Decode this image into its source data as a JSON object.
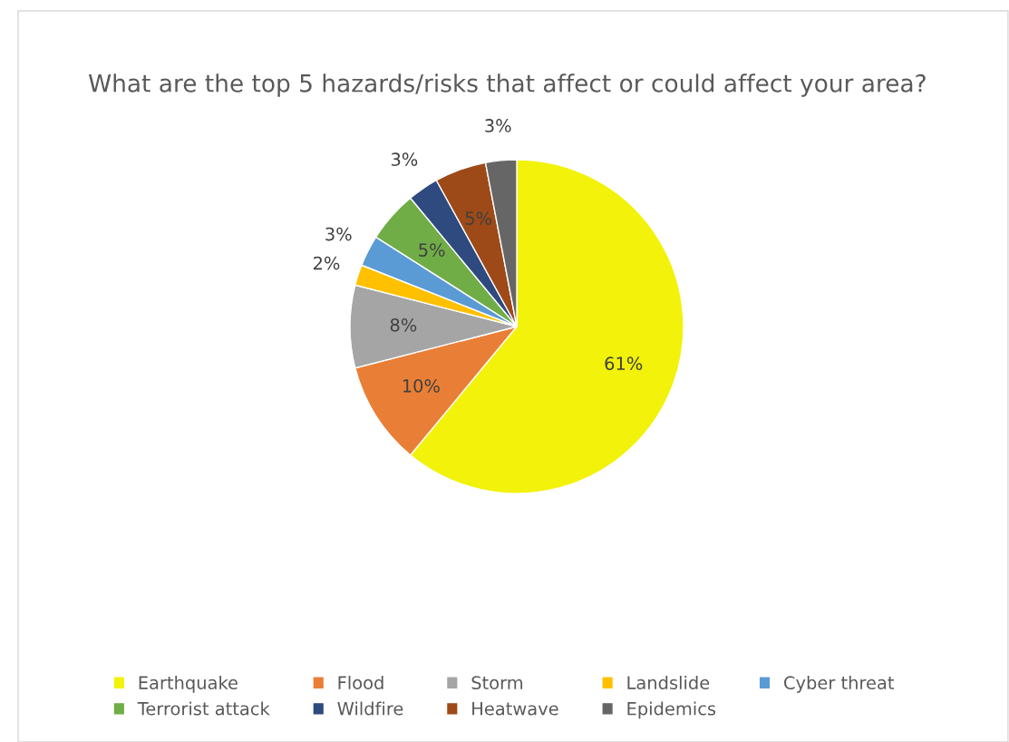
{
  "chart_data": {
    "type": "pie",
    "title": "What are the top 5 hazards/risks that affect or could affect your area?",
    "categories": [
      "Earthquake",
      "Flood",
      "Storm",
      "Landslide",
      "Cyber threat",
      "Terrorist attack",
      "Wildfire",
      "Heatwave",
      "Epidemics"
    ],
    "values": [
      61,
      10,
      8,
      2,
      3,
      5,
      3,
      5,
      3
    ],
    "colors": [
      "#f2f20a",
      "#e97f36",
      "#a5a5a5",
      "#ffc000",
      "#5b9bd5",
      "#70ad47",
      "#2e4a7f",
      "#9e4a18",
      "#666666"
    ],
    "value_labels": [
      "61%",
      "10%",
      "8%",
      "2%",
      "3%",
      "5%",
      "3%",
      "5%",
      "3%"
    ],
    "legend": "bottom"
  }
}
